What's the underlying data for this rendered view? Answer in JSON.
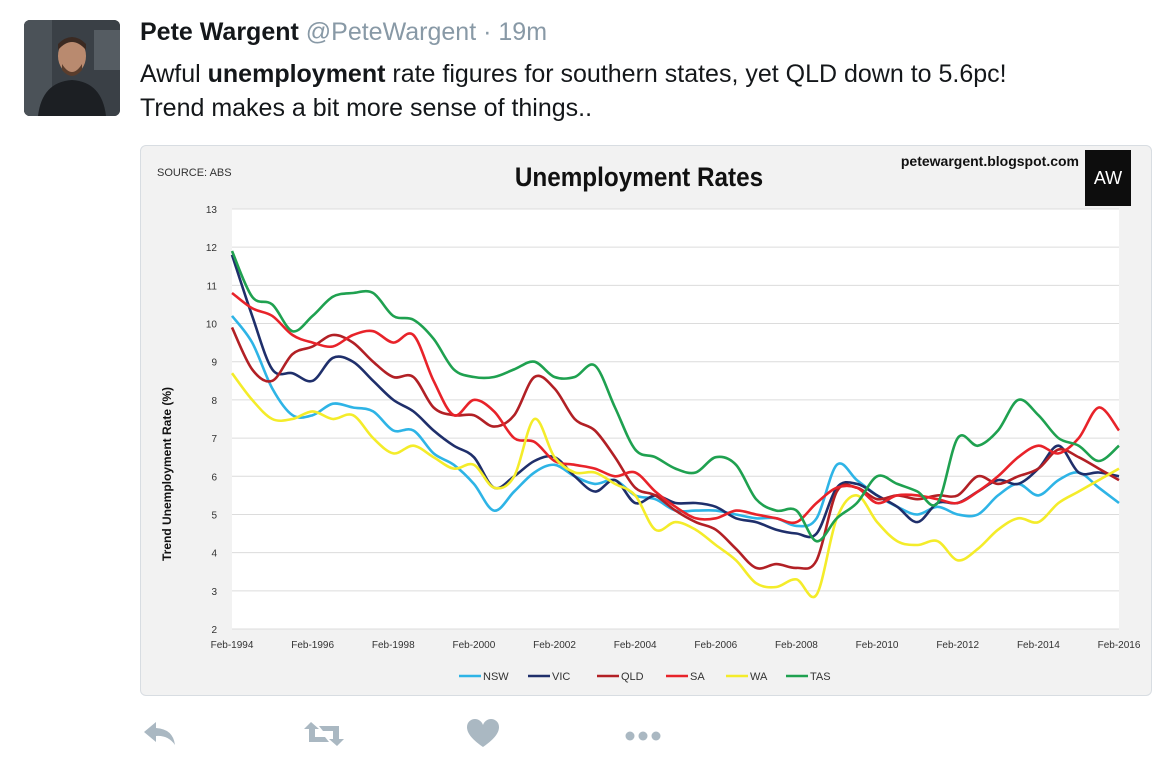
{
  "tweet": {
    "author_name": "Pete Wargent",
    "handle": "@PeteWargent",
    "separator": "·",
    "time": "19m",
    "text_before": "Awful ",
    "text_bold": "unemployment",
    "text_after": " rate figures for southern states, yet QLD down to 5.6pc!",
    "text_line2": "Trend makes a bit more sense of things.."
  },
  "actions": [
    {
      "name": "reply",
      "icon": "reply-icon"
    },
    {
      "name": "retweet",
      "icon": "retweet-icon"
    },
    {
      "name": "like",
      "icon": "heart-icon"
    },
    {
      "name": "more",
      "icon": "more-icon"
    }
  ],
  "media": {
    "source": "SOURCE: ABS",
    "site": "petewargent.blogspot.com",
    "logo_text": "AW"
  },
  "chart_data": {
    "type": "line",
    "title": "Unemployment Rates",
    "ylabel": "Trend Unemployment Rate (%)",
    "xlabel": "",
    "ylim": [
      2,
      13
    ],
    "yticks": [
      2,
      3,
      4,
      5,
      6,
      7,
      8,
      9,
      10,
      11,
      12,
      13
    ],
    "xlim": [
      1994,
      2016
    ],
    "xticks": [
      {
        "x": 1994,
        "label": "Feb-1994"
      },
      {
        "x": 1996,
        "label": "Feb-1996"
      },
      {
        "x": 1998,
        "label": "Feb-1998"
      },
      {
        "x": 2000,
        "label": "Feb-2000"
      },
      {
        "x": 2002,
        "label": "Feb-2002"
      },
      {
        "x": 2004,
        "label": "Feb-2004"
      },
      {
        "x": 2006,
        "label": "Feb-2006"
      },
      {
        "x": 2008,
        "label": "Feb-2008"
      },
      {
        "x": 2010,
        "label": "Feb-2010"
      },
      {
        "x": 2012,
        "label": "Feb-2012"
      },
      {
        "x": 2014,
        "label": "Feb-2014"
      },
      {
        "x": 2016,
        "label": "Feb-2016"
      }
    ],
    "grid": "horizontal",
    "legend_position": "bottom",
    "series": [
      {
        "name": "NSW",
        "color": "#2eb4e6",
        "points": [
          [
            1994,
            10.2
          ],
          [
            1994.5,
            9.5
          ],
          [
            1995,
            8.3
          ],
          [
            1995.5,
            7.6
          ],
          [
            1996,
            7.6
          ],
          [
            1996.5,
            7.9
          ],
          [
            1997,
            7.8
          ],
          [
            1997.5,
            7.7
          ],
          [
            1998,
            7.2
          ],
          [
            1998.5,
            7.2
          ],
          [
            1999,
            6.6
          ],
          [
            1999.5,
            6.3
          ],
          [
            2000,
            5.8
          ],
          [
            2000.5,
            5.1
          ],
          [
            2001,
            5.6
          ],
          [
            2001.5,
            6.1
          ],
          [
            2002,
            6.3
          ],
          [
            2002.5,
            6.0
          ],
          [
            2003,
            5.8
          ],
          [
            2003.5,
            5.9
          ],
          [
            2004,
            5.5
          ],
          [
            2004.5,
            5.4
          ],
          [
            2005,
            5.1
          ],
          [
            2005.5,
            5.1
          ],
          [
            2006,
            5.1
          ],
          [
            2006.5,
            5.0
          ],
          [
            2007,
            4.9
          ],
          [
            2007.5,
            4.9
          ],
          [
            2008,
            4.7
          ],
          [
            2008.5,
            4.9
          ],
          [
            2009,
            6.3
          ],
          [
            2009.5,
            5.9
          ],
          [
            2010,
            5.5
          ],
          [
            2010.5,
            5.2
          ],
          [
            2011,
            5.0
          ],
          [
            2011.5,
            5.2
          ],
          [
            2012,
            5.0
          ],
          [
            2012.5,
            5.0
          ],
          [
            2013,
            5.5
          ],
          [
            2013.5,
            5.8
          ],
          [
            2014,
            5.5
          ],
          [
            2014.5,
            5.9
          ],
          [
            2015,
            6.1
          ],
          [
            2015.5,
            5.7
          ],
          [
            2016,
            5.3
          ]
        ]
      },
      {
        "name": "VIC",
        "color": "#1f2f6b",
        "points": [
          [
            1994,
            11.8
          ],
          [
            1994.5,
            10.2
          ],
          [
            1995,
            8.8
          ],
          [
            1995.5,
            8.7
          ],
          [
            1996,
            8.5
          ],
          [
            1996.5,
            9.1
          ],
          [
            1997,
            9.0
          ],
          [
            1997.5,
            8.5
          ],
          [
            1998,
            8.0
          ],
          [
            1998.5,
            7.7
          ],
          [
            1999,
            7.2
          ],
          [
            1999.5,
            6.8
          ],
          [
            2000,
            6.5
          ],
          [
            2000.5,
            5.7
          ],
          [
            2001,
            6.0
          ],
          [
            2001.5,
            6.4
          ],
          [
            2002,
            6.5
          ],
          [
            2002.5,
            6.0
          ],
          [
            2003,
            5.6
          ],
          [
            2003.5,
            5.9
          ],
          [
            2004,
            5.3
          ],
          [
            2004.5,
            5.5
          ],
          [
            2005,
            5.3
          ],
          [
            2005.5,
            5.3
          ],
          [
            2006,
            5.2
          ],
          [
            2006.5,
            4.9
          ],
          [
            2007,
            4.8
          ],
          [
            2007.5,
            4.6
          ],
          [
            2008,
            4.5
          ],
          [
            2008.5,
            4.5
          ],
          [
            2009,
            5.7
          ],
          [
            2009.5,
            5.8
          ],
          [
            2010,
            5.5
          ],
          [
            2010.5,
            5.2
          ],
          [
            2011,
            4.8
          ],
          [
            2011.5,
            5.3
          ],
          [
            2012,
            5.3
          ],
          [
            2012.5,
            5.6
          ],
          [
            2013,
            5.9
          ],
          [
            2013.5,
            5.8
          ],
          [
            2014,
            6.2
          ],
          [
            2014.5,
            6.8
          ],
          [
            2015,
            6.1
          ],
          [
            2015.5,
            6.1
          ],
          [
            2016,
            6.0
          ]
        ]
      },
      {
        "name": "QLD",
        "color": "#b22025",
        "points": [
          [
            1994,
            9.9
          ],
          [
            1994.5,
            8.8
          ],
          [
            1995,
            8.5
          ],
          [
            1995.5,
            9.2
          ],
          [
            1996,
            9.4
          ],
          [
            1996.5,
            9.7
          ],
          [
            1997,
            9.5
          ],
          [
            1997.5,
            9.0
          ],
          [
            1998,
            8.6
          ],
          [
            1998.5,
            8.6
          ],
          [
            1999,
            7.8
          ],
          [
            1999.5,
            7.6
          ],
          [
            2000,
            7.6
          ],
          [
            2000.5,
            7.3
          ],
          [
            2001,
            7.6
          ],
          [
            2001.5,
            8.6
          ],
          [
            2002,
            8.3
          ],
          [
            2002.5,
            7.5
          ],
          [
            2003,
            7.2
          ],
          [
            2003.5,
            6.5
          ],
          [
            2004,
            5.7
          ],
          [
            2004.5,
            5.5
          ],
          [
            2005,
            5.1
          ],
          [
            2005.5,
            4.8
          ],
          [
            2006,
            4.6
          ],
          [
            2006.5,
            4.1
          ],
          [
            2007,
            3.6
          ],
          [
            2007.5,
            3.7
          ],
          [
            2008,
            3.6
          ],
          [
            2008.5,
            3.8
          ],
          [
            2009,
            5.6
          ],
          [
            2009.5,
            5.7
          ],
          [
            2010,
            5.4
          ],
          [
            2010.5,
            5.5
          ],
          [
            2011,
            5.4
          ],
          [
            2011.5,
            5.5
          ],
          [
            2012,
            5.5
          ],
          [
            2012.5,
            6.0
          ],
          [
            2013,
            5.8
          ],
          [
            2013.5,
            6.0
          ],
          [
            2014,
            6.2
          ],
          [
            2014.5,
            6.7
          ],
          [
            2015,
            6.5
          ],
          [
            2015.5,
            6.2
          ],
          [
            2016,
            5.9
          ]
        ]
      },
      {
        "name": "SA",
        "color": "#e8232a",
        "points": [
          [
            1994,
            10.8
          ],
          [
            1994.5,
            10.4
          ],
          [
            1995,
            10.2
          ],
          [
            1995.5,
            9.7
          ],
          [
            1996,
            9.5
          ],
          [
            1996.5,
            9.4
          ],
          [
            1997,
            9.7
          ],
          [
            1997.5,
            9.8
          ],
          [
            1998,
            9.5
          ],
          [
            1998.5,
            9.7
          ],
          [
            1999,
            8.5
          ],
          [
            1999.5,
            7.6
          ],
          [
            2000,
            8.0
          ],
          [
            2000.5,
            7.7
          ],
          [
            2001,
            7.0
          ],
          [
            2001.5,
            6.9
          ],
          [
            2002,
            6.4
          ],
          [
            2002.5,
            6.3
          ],
          [
            2003,
            6.2
          ],
          [
            2003.5,
            6.0
          ],
          [
            2004,
            6.1
          ],
          [
            2004.5,
            5.6
          ],
          [
            2005,
            5.2
          ],
          [
            2005.5,
            4.9
          ],
          [
            2006,
            4.9
          ],
          [
            2006.5,
            5.1
          ],
          [
            2007,
            5.0
          ],
          [
            2007.5,
            4.9
          ],
          [
            2008,
            4.8
          ],
          [
            2008.5,
            5.3
          ],
          [
            2009,
            5.7
          ],
          [
            2009.5,
            5.7
          ],
          [
            2010,
            5.3
          ],
          [
            2010.5,
            5.5
          ],
          [
            2011,
            5.5
          ],
          [
            2011.5,
            5.4
          ],
          [
            2012,
            5.3
          ],
          [
            2012.5,
            5.6
          ],
          [
            2013,
            6.0
          ],
          [
            2013.5,
            6.5
          ],
          [
            2014,
            6.8
          ],
          [
            2014.5,
            6.6
          ],
          [
            2015,
            7.0
          ],
          [
            2015.5,
            7.8
          ],
          [
            2016,
            7.2
          ]
        ]
      },
      {
        "name": "WA",
        "color": "#f4ec2a",
        "points": [
          [
            1994,
            8.7
          ],
          [
            1994.5,
            8.0
          ],
          [
            1995,
            7.5
          ],
          [
            1995.5,
            7.5
          ],
          [
            1996,
            7.7
          ],
          [
            1996.5,
            7.5
          ],
          [
            1997,
            7.6
          ],
          [
            1997.5,
            7.0
          ],
          [
            1998,
            6.6
          ],
          [
            1998.5,
            6.8
          ],
          [
            1999,
            6.5
          ],
          [
            1999.5,
            6.2
          ],
          [
            2000,
            6.3
          ],
          [
            2000.5,
            5.7
          ],
          [
            2001,
            6.0
          ],
          [
            2001.5,
            7.5
          ],
          [
            2002,
            6.5
          ],
          [
            2002.5,
            6.1
          ],
          [
            2003,
            6.1
          ],
          [
            2003.5,
            5.8
          ],
          [
            2004,
            5.5
          ],
          [
            2004.5,
            4.6
          ],
          [
            2005,
            4.8
          ],
          [
            2005.5,
            4.6
          ],
          [
            2006,
            4.2
          ],
          [
            2006.5,
            3.8
          ],
          [
            2007,
            3.2
          ],
          [
            2007.5,
            3.1
          ],
          [
            2008,
            3.3
          ],
          [
            2008.5,
            2.9
          ],
          [
            2009,
            4.9
          ],
          [
            2009.5,
            5.5
          ],
          [
            2010,
            4.8
          ],
          [
            2010.5,
            4.3
          ],
          [
            2011,
            4.2
          ],
          [
            2011.5,
            4.3
          ],
          [
            2012,
            3.8
          ],
          [
            2012.5,
            4.1
          ],
          [
            2013,
            4.6
          ],
          [
            2013.5,
            4.9
          ],
          [
            2014,
            4.8
          ],
          [
            2014.5,
            5.3
          ],
          [
            2015,
            5.6
          ],
          [
            2015.5,
            5.9
          ],
          [
            2016,
            6.2
          ]
        ]
      },
      {
        "name": "TAS",
        "color": "#1fa150",
        "points": [
          [
            1994,
            11.9
          ],
          [
            1994.5,
            10.7
          ],
          [
            1995,
            10.5
          ],
          [
            1995.5,
            9.8
          ],
          [
            1996,
            10.2
          ],
          [
            1996.5,
            10.7
          ],
          [
            1997,
            10.8
          ],
          [
            1997.5,
            10.8
          ],
          [
            1998,
            10.2
          ],
          [
            1998.5,
            10.1
          ],
          [
            1999,
            9.6
          ],
          [
            1999.5,
            8.8
          ],
          [
            2000,
            8.6
          ],
          [
            2000.5,
            8.6
          ],
          [
            2001,
            8.8
          ],
          [
            2001.5,
            9.0
          ],
          [
            2002,
            8.6
          ],
          [
            2002.5,
            8.6
          ],
          [
            2003,
            8.9
          ],
          [
            2003.5,
            7.8
          ],
          [
            2004,
            6.7
          ],
          [
            2004.5,
            6.5
          ],
          [
            2005,
            6.2
          ],
          [
            2005.5,
            6.1
          ],
          [
            2006,
            6.5
          ],
          [
            2006.5,
            6.3
          ],
          [
            2007,
            5.4
          ],
          [
            2007.5,
            5.1
          ],
          [
            2008,
            5.1
          ],
          [
            2008.5,
            4.3
          ],
          [
            2009,
            4.9
          ],
          [
            2009.5,
            5.3
          ],
          [
            2010,
            6.0
          ],
          [
            2010.5,
            5.8
          ],
          [
            2011,
            5.6
          ],
          [
            2011.5,
            5.3
          ],
          [
            2012,
            7.0
          ],
          [
            2012.5,
            6.8
          ],
          [
            2013,
            7.2
          ],
          [
            2013.5,
            8.0
          ],
          [
            2014,
            7.6
          ],
          [
            2014.5,
            7.0
          ],
          [
            2015,
            6.8
          ],
          [
            2015.5,
            6.4
          ],
          [
            2016,
            6.8
          ]
        ]
      }
    ]
  }
}
